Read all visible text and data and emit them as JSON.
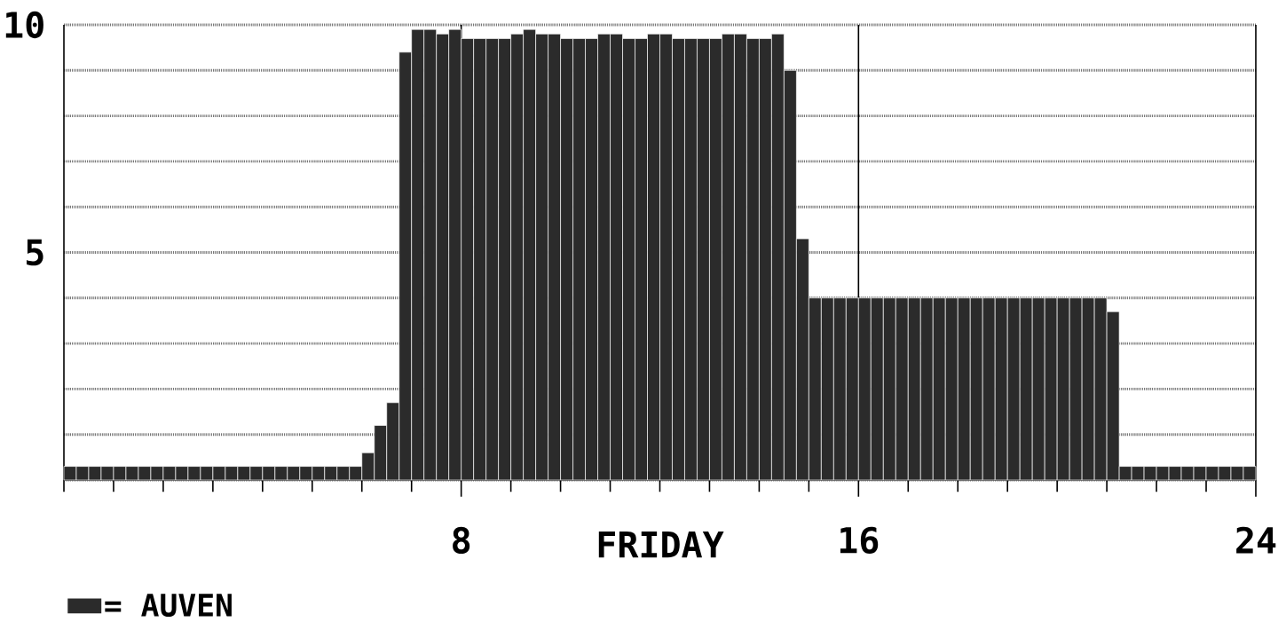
{
  "chart_data": {
    "type": "bar",
    "xlabel": "FRIDAY",
    "x": [
      0.125,
      0.375,
      0.625,
      0.875,
      1.125,
      1.375,
      1.625,
      1.875,
      2.125,
      2.375,
      2.625,
      2.875,
      3.125,
      3.375,
      3.625,
      3.875,
      4.125,
      4.375,
      4.625,
      4.875,
      5.125,
      5.375,
      5.625,
      5.875,
      6.125,
      6.375,
      6.625,
      6.875,
      7.125,
      7.375,
      7.625,
      7.875,
      8.125,
      8.375,
      8.625,
      8.875,
      9.125,
      9.375,
      9.625,
      9.875,
      10.125,
      10.375,
      10.625,
      10.875,
      11.125,
      11.375,
      11.625,
      11.875,
      12.125,
      12.375,
      12.625,
      12.875,
      13.125,
      13.375,
      13.625,
      13.875,
      14.125,
      14.375,
      14.625,
      14.875,
      15.125,
      15.375,
      15.625,
      15.875,
      16.125,
      16.375,
      16.625,
      16.875,
      17.125,
      17.375,
      17.625,
      17.875,
      18.125,
      18.375,
      18.625,
      18.875,
      19.125,
      19.375,
      19.625,
      19.875,
      20.125,
      20.375,
      20.625,
      20.875,
      21.125,
      21.375,
      21.625,
      21.875,
      22.125,
      22.375,
      22.625,
      22.875,
      23.125,
      23.375,
      23.625,
      23.875
    ],
    "series": [
      {
        "name": "= AUVEN",
        "color": "#2b2b2b",
        "values": [
          0.3,
          0.3,
          0.3,
          0.3,
          0.3,
          0.3,
          0.3,
          0.3,
          0.3,
          0.3,
          0.3,
          0.3,
          0.3,
          0.3,
          0.3,
          0.3,
          0.3,
          0.3,
          0.3,
          0.3,
          0.3,
          0.3,
          0.3,
          0.3,
          0.6,
          1.2,
          1.7,
          9.4,
          9.9,
          9.9,
          9.8,
          9.9,
          9.7,
          9.7,
          9.7,
          9.7,
          9.8,
          9.9,
          9.8,
          9.8,
          9.7,
          9.7,
          9.7,
          9.8,
          9.8,
          9.7,
          9.7,
          9.8,
          9.8,
          9.7,
          9.7,
          9.7,
          9.7,
          9.8,
          9.8,
          9.7,
          9.7,
          9.8,
          9.0,
          5.3,
          4.0,
          4.0,
          4.0,
          4.0,
          4.0,
          4.0,
          4.0,
          4.0,
          4.0,
          4.0,
          4.0,
          4.0,
          4.0,
          4.0,
          4.0,
          4.0,
          4.0,
          4.0,
          4.0,
          4.0,
          4.0,
          4.0,
          4.0,
          4.0,
          3.7,
          0.3,
          0.3,
          0.3,
          0.3,
          0.3,
          0.3,
          0.3,
          0.3,
          0.3,
          0.3,
          0.3
        ]
      }
    ],
    "xlim": [
      0,
      24
    ],
    "xticks": [
      {
        "value": 0,
        "label": null
      },
      {
        "value": 1,
        "label": null
      },
      {
        "value": 2,
        "label": null
      },
      {
        "value": 3,
        "label": null
      },
      {
        "value": 4,
        "label": null
      },
      {
        "value": 5,
        "label": null
      },
      {
        "value": 6,
        "label": null
      },
      {
        "value": 7,
        "label": null
      },
      8,
      {
        "value": 9,
        "label": null
      },
      {
        "value": 10,
        "label": null
      },
      {
        "value": 11,
        "label": null
      },
      {
        "value": 12,
        "label": null
      },
      {
        "value": 13,
        "label": null
      },
      {
        "value": 14,
        "label": null
      },
      {
        "value": 15,
        "label": null
      },
      16,
      {
        "value": 17,
        "label": null
      },
      {
        "value": 18,
        "label": null
      },
      {
        "value": 19,
        "label": null
      },
      {
        "value": 20,
        "label": null
      },
      {
        "value": 21,
        "label": null
      },
      {
        "value": 22,
        "label": null
      },
      {
        "value": 23,
        "label": null
      },
      24
    ],
    "ylim": [
      0,
      10
    ],
    "yticks": [
      {
        "value": 0,
        "label": null
      },
      {
        "value": 1,
        "label": null
      },
      {
        "value": 2,
        "label": null
      },
      {
        "value": 3,
        "label": null
      },
      {
        "value": 4,
        "label": null
      },
      5,
      {
        "value": 6,
        "label": null
      },
      {
        "value": 7,
        "label": null
      },
      {
        "value": 8,
        "label": null
      },
      {
        "value": 9,
        "label": null
      },
      10
    ],
    "grid": true,
    "legend": "bottom left"
  }
}
